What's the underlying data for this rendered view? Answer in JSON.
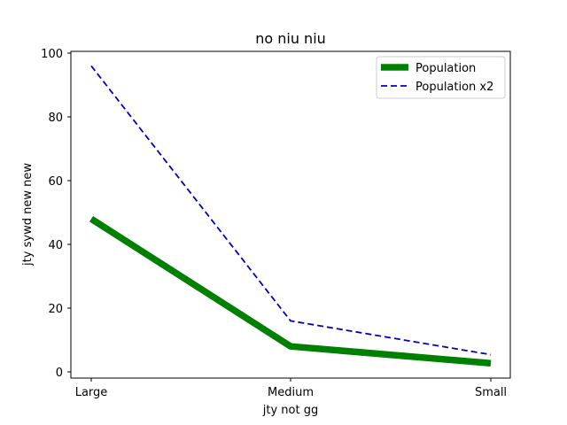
{
  "chart_data": {
    "type": "line",
    "title": "no niu niu",
    "xlabel": "jty not gg",
    "ylabel": "jty sywd new new",
    "categories": [
      "Large",
      "Medium",
      "Small"
    ],
    "ylim": [
      0,
      100
    ],
    "yticks": [
      0,
      20,
      40,
      60,
      80,
      100
    ],
    "grid": false,
    "legend_position": "top-right",
    "series": [
      {
        "name": "Population",
        "values": [
          48,
          8,
          2.7
        ],
        "color": "#008000",
        "style": "solid"
      },
      {
        "name": "Population x2",
        "values": [
          96,
          16,
          5.4
        ],
        "color": "#0000bf",
        "style": "dashed"
      }
    ]
  }
}
